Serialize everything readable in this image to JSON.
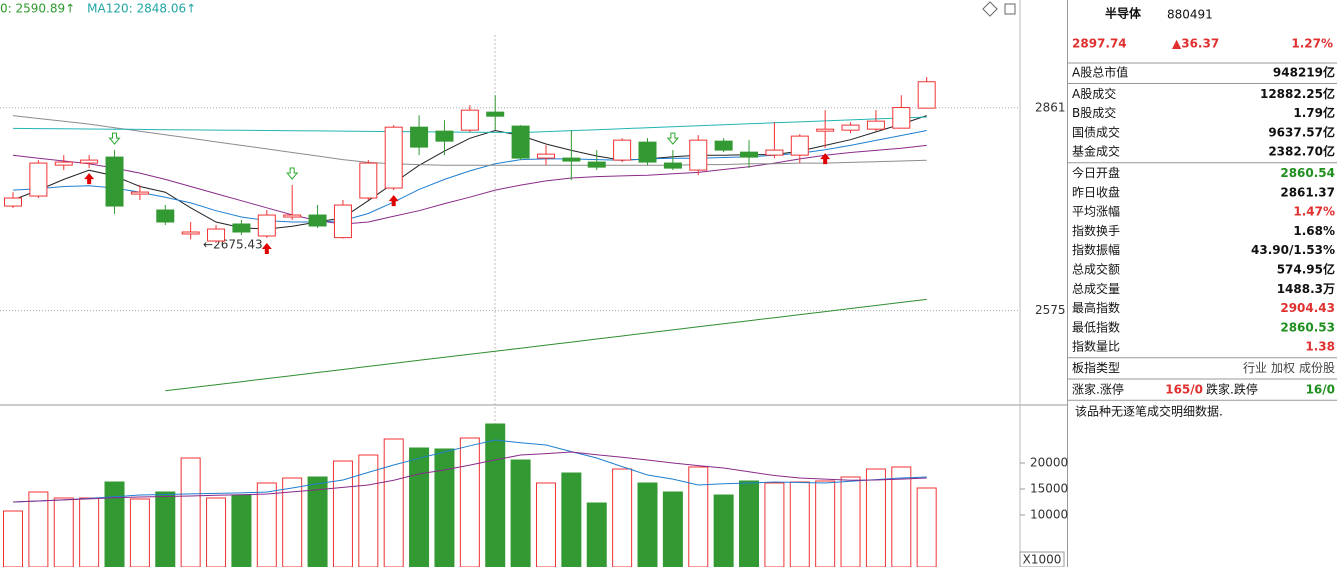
{
  "header": {
    "items": [
      {
        "text": "0: 2590.89↑",
        "color": "#2f9a2f"
      },
      {
        "text": "MA120: 2848.06↑",
        "color": "#22a5a5"
      }
    ]
  },
  "chart_data": [
    {
      "type": "candlestick",
      "up_color": "#f03232",
      "down_color": "#339933",
      "ylim": [
        2442,
        3013
      ],
      "yticks": [
        2575,
        2861
      ],
      "grid": true,
      "annotation": "←2675.43",
      "candles": [
        {
          "open": 2722.5,
          "high": 2742.2,
          "low": 2719.7,
          "close": 2733.8
        },
        {
          "open": 2736.6,
          "high": 2787.3,
          "low": 2733.8,
          "close": 2783.1
        },
        {
          "open": 2780.2,
          "high": 2794.3,
          "low": 2773.2,
          "close": 2784.5
        },
        {
          "open": 2783.1,
          "high": 2794.3,
          "low": 2776.0,
          "close": 2787.3
        },
        {
          "open": 2791.5,
          "high": 2801.4,
          "low": 2711.2,
          "close": 2722.5
        },
        {
          "open": 2739.4,
          "high": 2752.1,
          "low": 2731.0,
          "close": 2742.2
        },
        {
          "open": 2716.9,
          "high": 2723.9,
          "low": 2695.8,
          "close": 2700.0
        },
        {
          "open": 2683.1,
          "high": 2700.0,
          "low": 2675.43,
          "close": 2685.9
        },
        {
          "open": 2673.2,
          "high": 2695.8,
          "low": 2670.4,
          "close": 2690.1
        },
        {
          "open": 2697.2,
          "high": 2702.8,
          "low": 2681.7,
          "close": 2685.9
        },
        {
          "open": 2680.3,
          "high": 2716.9,
          "low": 2677.5,
          "close": 2709.8
        },
        {
          "open": 2707.0,
          "high": 2752.1,
          "low": 2702.8,
          "close": 2709.8
        },
        {
          "open": 2709.8,
          "high": 2723.9,
          "low": 2691.5,
          "close": 2694.4
        },
        {
          "open": 2678.0,
          "high": 2731.0,
          "low": 2676.5,
          "close": 2723.9
        },
        {
          "open": 2733.8,
          "high": 2787.3,
          "low": 2731.0,
          "close": 2783.1
        },
        {
          "open": 2747.9,
          "high": 2836.6,
          "low": 2745.0,
          "close": 2833.7
        },
        {
          "open": 2833.7,
          "high": 2850.6,
          "low": 2794.3,
          "close": 2805.6
        },
        {
          "open": 2828.1,
          "high": 2843.6,
          "low": 2794.3,
          "close": 2814.0
        },
        {
          "open": 2829.5,
          "high": 2864.7,
          "low": 2826.7,
          "close": 2857.7
        },
        {
          "open": 2854.9,
          "high": 2878.8,
          "low": 2829.5,
          "close": 2849.2
        },
        {
          "open": 2835.2,
          "high": 2836.6,
          "low": 2787.3,
          "close": 2790.1
        },
        {
          "open": 2790.1,
          "high": 2808.4,
          "low": 2780.2,
          "close": 2795.7
        },
        {
          "open": 2790.1,
          "high": 2829.5,
          "low": 2759.1,
          "close": 2785.9
        },
        {
          "open": 2784.5,
          "high": 2801.4,
          "low": 2773.2,
          "close": 2777.4
        },
        {
          "open": 2787.3,
          "high": 2818.3,
          "low": 2784.5,
          "close": 2815.4
        },
        {
          "open": 2812.6,
          "high": 2818.3,
          "low": 2780.2,
          "close": 2784.5
        },
        {
          "open": 2783.1,
          "high": 2801.4,
          "low": 2773.2,
          "close": 2776.0
        },
        {
          "open": 2773.2,
          "high": 2822.5,
          "low": 2766.2,
          "close": 2815.4
        },
        {
          "open": 2814.0,
          "high": 2818.3,
          "low": 2798.5,
          "close": 2801.4
        },
        {
          "open": 2798.5,
          "high": 2815.4,
          "low": 2776.0,
          "close": 2791.5
        },
        {
          "open": 2794.3,
          "high": 2840.8,
          "low": 2790.1,
          "close": 2801.4
        },
        {
          "open": 2794.3,
          "high": 2823.9,
          "low": 2783.1,
          "close": 2821.1
        },
        {
          "open": 2828.1,
          "high": 2857.7,
          "low": 2804.2,
          "close": 2830.9
        },
        {
          "open": 2829.5,
          "high": 2840.8,
          "low": 2825.3,
          "close": 2836.6
        },
        {
          "open": 2830.9,
          "high": 2857.7,
          "low": 2828.1,
          "close": 2842.2
        },
        {
          "open": 2832.3,
          "high": 2878.8,
          "low": 2832.3,
          "close": 2861.37
        },
        {
          "open": 2860.54,
          "high": 2904.43,
          "low": 2860.53,
          "close": 2897.74
        }
      ],
      "series": [
        {
          "color": "#222222",
          "values": [
            2731,
            2745,
            2760,
            2773,
            2765,
            2750,
            2742,
            2720,
            2700,
            2692,
            2690,
            2694,
            2700,
            2706,
            2730,
            2755,
            2780,
            2800,
            2818,
            2829,
            2822,
            2810,
            2801,
            2793,
            2787,
            2789,
            2792,
            2794,
            2794,
            2795,
            2795,
            2800,
            2808,
            2816,
            2827,
            2838,
            2850
          ]
        },
        {
          "color": "#1f7fd0",
          "values": [
            2745,
            2747,
            2750,
            2751,
            2748,
            2742,
            2735,
            2727,
            2716,
            2707,
            2702,
            2700,
            2700,
            2702,
            2712,
            2728,
            2746,
            2760,
            2772,
            2782,
            2788,
            2789,
            2789,
            2788,
            2787,
            2789,
            2790,
            2790,
            2791,
            2792,
            2794,
            2797,
            2802,
            2808,
            2815,
            2822,
            2829
          ]
        },
        {
          "color": "#8a2a8a",
          "values": [
            2794,
            2790,
            2786,
            2782,
            2776,
            2769,
            2760,
            2750,
            2740,
            2730,
            2720,
            2710,
            2702,
            2697,
            2700,
            2708,
            2716,
            2726,
            2735,
            2745,
            2752,
            2758,
            2762,
            2764,
            2765,
            2766,
            2768,
            2770,
            2774,
            2778,
            2783,
            2789,
            2794,
            2798,
            2801,
            2804,
            2808
          ]
        },
        {
          "color": "#8c8c8c",
          "values": [
            2850,
            2846,
            2842,
            2838,
            2833,
            2828,
            2823,
            2818,
            2813,
            2808,
            2803,
            2798,
            2793,
            2788,
            2784,
            2782,
            2781,
            2780,
            2780,
            2780,
            2780,
            2780,
            2780,
            2780,
            2780,
            2780,
            2780,
            2781,
            2781,
            2782,
            2782,
            2783,
            2783,
            2784,
            2785,
            2786,
            2787
          ]
        },
        {
          "color": "#22b5b5",
          "values": [
            2832.0,
            2831.7,
            2831.4,
            2831.1,
            2830.8,
            2830.5,
            2830.2,
            2829.9,
            2829.6,
            2829.3,
            2829.0,
            2828.7,
            2828.4,
            2828.1,
            2827.8,
            2827.5,
            2827.2,
            2826.9,
            2826.6,
            2826.3,
            2826.0,
            2827.4,
            2828.8,
            2830.1,
            2831.5,
            2832.9,
            2834.3,
            2835.6,
            2837.0,
            2838.4,
            2839.8,
            2841.2,
            2842.5,
            2843.9,
            2845.3,
            2846.7,
            2848.06
          ]
        },
        {
          "color": "#2f8f2f",
          "values": [
            null,
            null,
            null,
            null,
            null,
            null,
            2462.0,
            2466.3,
            2470.6,
            2474.9,
            2479.2,
            2483.5,
            2487.8,
            2492.1,
            2496.4,
            2500.7,
            2505.0,
            2509.2,
            2513.5,
            2517.8,
            2522.1,
            2526.4,
            2530.7,
            2535.0,
            2539.3,
            2543.6,
            2547.9,
            2552.2,
            2556.5,
            2560.8,
            2565.1,
            2569.4,
            2573.7,
            2578.0,
            2582.3,
            2586.6,
            2590.89
          ]
        }
      ]
    },
    {
      "type": "bar",
      "unit": "X1000",
      "ylim": [
        0,
        30000
      ],
      "yticks": [
        20000,
        15000,
        10000
      ],
      "values": [
        10769,
        14423,
        13269,
        13269,
        16346,
        13077,
        14423,
        20962,
        13269,
        13846,
        16154,
        17115,
        17308,
        20385,
        21538,
        24615,
        22885,
        22692,
        24808,
        27500,
        20577,
        16154,
        18077,
        12308,
        18846,
        16154,
        14423,
        19231,
        13846,
        16538,
        16154,
        16346,
        16538,
        17308,
        18846,
        19231,
        15192
      ],
      "series": [
        {
          "color": "#1f7fd0",
          "values": [
            12500,
            12700,
            12900,
            13200,
            13500,
            13846,
            13950,
            14050,
            14150,
            14250,
            14423,
            15200,
            16000,
            16731,
            18200,
            19615,
            20900,
            22115,
            23300,
            24423,
            23900,
            23460,
            22200,
            20962,
            19300,
            17692,
            16900,
            15769,
            16000,
            16150,
            16346,
            16250,
            16154,
            16500,
            16800,
            17115,
            17308
          ]
        },
        {
          "color": "#8a2a8a",
          "values": [
            12500,
            12700,
            12900,
            13100,
            13300,
            13462,
            13550,
            13650,
            13800,
            13900,
            14038,
            14450,
            14850,
            15300,
            15769,
            16700,
            17900,
            18654,
            19600,
            20600,
            21538,
            21800,
            22115,
            21600,
            21100,
            20577,
            20000,
            19500,
            19038,
            18300,
            17600,
            17115,
            16900,
            16700,
            16731,
            16900,
            17115
          ]
        }
      ]
    }
  ],
  "panel": {
    "title": "半导体",
    "code": "880491",
    "price": "2897.74",
    "change": "▲36.37",
    "change_pct": "1.27%",
    "price_color": "#e03030",
    "groups": [
      [
        {
          "label": "A股总市值",
          "value": "948219亿"
        }
      ],
      [
        {
          "label": "A股成交",
          "value": "12882.25亿"
        },
        {
          "label": "B股成交",
          "value": "1.79亿"
        },
        {
          "label": "国债成交",
          "value": "9637.57亿"
        },
        {
          "label": "基金成交",
          "value": "2382.70亿"
        }
      ],
      [
        {
          "label": "今日开盘",
          "value": "2860.54",
          "color": "#1f8f1f"
        },
        {
          "label": "昨日收盘",
          "value": "2861.37"
        },
        {
          "label": "平均涨幅",
          "value": "1.47%",
          "color": "#e03030"
        },
        {
          "label": "指数换手",
          "value": "1.68%"
        },
        {
          "label": "指数振幅",
          "value": "43.90/1.53%"
        },
        {
          "label": "总成交额",
          "value": "574.95亿"
        },
        {
          "label": "总成交量",
          "value": "1488.3万"
        },
        {
          "label": "最高指数",
          "value": "2904.43",
          "color": "#e03030"
        },
        {
          "label": "最低指数",
          "value": "2860.53",
          "color": "#1f8f1f"
        },
        {
          "label": "指数量比",
          "value": "1.38",
          "color": "#e03030"
        }
      ]
    ],
    "sector": {
      "label": "板指类型",
      "values": [
        "行业",
        "加权",
        "成份股"
      ]
    },
    "breadth": {
      "up_label": "涨家.涨停",
      "up_value": "165/0",
      "up_color": "#e03030",
      "down_label": "跌家.跌停",
      "down_value": "16/0",
      "down_color": "#1f8f1f"
    },
    "note": "该品种无逐笔成交明细数据."
  }
}
